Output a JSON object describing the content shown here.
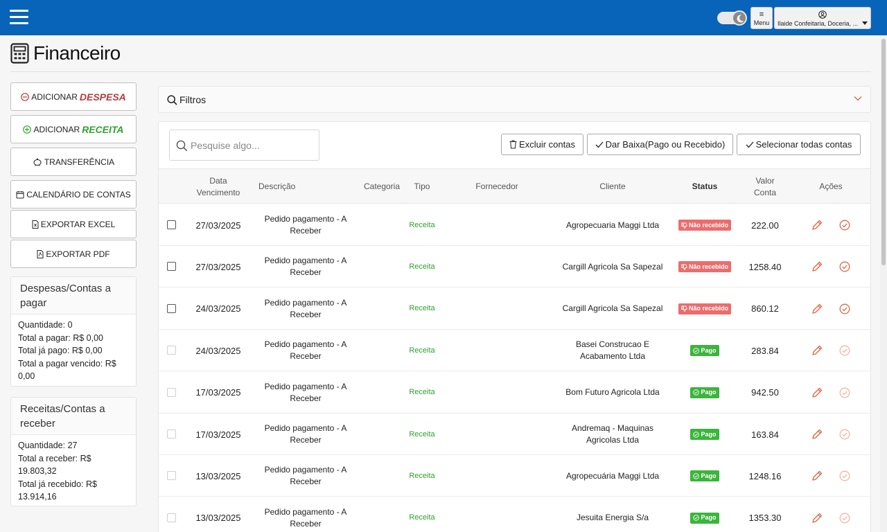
{
  "header": {
    "menu_label": "Menu",
    "user_name": "Ilaide Confeitaria, Doceria, ..."
  },
  "page": {
    "title": "Financeiro"
  },
  "sidebar": {
    "add_expense_prefix": "ADICIONAR",
    "add_expense_emphasis": "DESPESA",
    "add_income_prefix": "ADICIONAR",
    "add_income_emphasis": "RECEITA",
    "transfer": "TRANSFERÊNCIA",
    "calendar": "CALENDÁRIO DE CONTAS",
    "export_excel": "EXPORTAR EXCEL",
    "export_pdf": "EXPORTAR PDF"
  },
  "payables": {
    "title": "Despesas/Contas a pagar",
    "quantity": "Quantidade: 0",
    "total_to_pay": "Total a pagar: R$ 0,00",
    "total_paid": "Total já pago: R$ 0,00",
    "total_overdue": "Total a pagar vencido: R$ 0,00"
  },
  "receivables": {
    "title": "Receitas/Contas a receber",
    "quantity": "Quantidade: 27",
    "total_to_receive": "Total a receber: R$ 19.803,32",
    "total_received": "Total já recebido: R$ 13.914,16"
  },
  "filters": {
    "label": "Filtros"
  },
  "toolbar": {
    "search_placeholder": "Pesquise algo...",
    "delete_label": "Excluir contas",
    "settle_label": "Dar Baixa(Pago ou Recebido)",
    "select_all_label": "Selecionar todas contas"
  },
  "table": {
    "headers": {
      "due_date": "Data Vencimento",
      "description": "Descrição",
      "category": "Categoria",
      "type": "Tipo",
      "supplier": "Fornecedor",
      "client": "Cliente",
      "status": "Status",
      "value": "Valor Conta",
      "actions": "Ações"
    },
    "rows": [
      {
        "date": "27/03/2025",
        "description": "Pedido pagamento - A Receber",
        "category": "",
        "type": "Receita",
        "supplier": "",
        "client": "Agropecuaria Maggi Ltda",
        "status": "Não recebido",
        "status_kind": "pending",
        "value": "222.00"
      },
      {
        "date": "27/03/2025",
        "description": "Pedido pagamento - A Receber",
        "category": "",
        "type": "Receita",
        "supplier": "",
        "client": "Cargill Agricola Sa Sapezal",
        "status": "Não recebido",
        "status_kind": "pending",
        "value": "1258.40"
      },
      {
        "date": "24/03/2025",
        "description": "Pedido pagamento - A Receber",
        "category": "",
        "type": "Receita",
        "supplier": "",
        "client": "Cargill Agricola Sa Sapezal",
        "status": "Não recebido",
        "status_kind": "pending",
        "value": "860.12"
      },
      {
        "date": "24/03/2025",
        "description": "Pedido pagamento - A Receber",
        "category": "",
        "type": "Receita",
        "supplier": "",
        "client": "Basei Construcao E Acabamento Ltda",
        "status": "Pago",
        "status_kind": "paid",
        "value": "283.84"
      },
      {
        "date": "17/03/2025",
        "description": "Pedido pagamento - A Receber",
        "category": "",
        "type": "Receita",
        "supplier": "",
        "client": "Bom Futuro Agricola Ltda",
        "status": "Pago",
        "status_kind": "paid",
        "value": "942.50"
      },
      {
        "date": "17/03/2025",
        "description": "Pedido pagamento - A Receber",
        "category": "",
        "type": "Receita",
        "supplier": "",
        "client": "Andremaq - Maquinas Agricolas Ltda",
        "status": "Pago",
        "status_kind": "paid",
        "value": "163.84"
      },
      {
        "date": "13/03/2025",
        "description": "Pedido pagamento - A Receber",
        "category": "",
        "type": "Receita",
        "supplier": "",
        "client": "Agropecuária Maggi Ltda",
        "status": "Pago",
        "status_kind": "paid",
        "value": "1248.16"
      },
      {
        "date": "13/03/2025",
        "description": "Pedido pagamento - A Receber",
        "category": "",
        "type": "Receita",
        "supplier": "",
        "client": "Jesuita Energia S/a",
        "status": "Pago",
        "status_kind": "paid",
        "value": "1353.30"
      }
    ]
  },
  "colors": {
    "header_bg": "#0864b8",
    "expense": "#b33a3a",
    "income": "#2ea52e",
    "pending_badge": "#ec6c6c",
    "paid_badge": "#3bb53b",
    "action_icon": "#e0684a"
  },
  "icons": [
    "hamburger-icon",
    "moon-icon",
    "menu-icon",
    "user-icon",
    "calculator-icon",
    "minus-circle-icon",
    "plus-circle-icon",
    "piggy-bank-icon",
    "calendar-icon",
    "excel-file-icon",
    "pdf-file-icon",
    "search-icon",
    "chevron-down-icon",
    "trash-icon",
    "check-icon",
    "edit-pencil-icon",
    "check-circle-icon"
  ]
}
